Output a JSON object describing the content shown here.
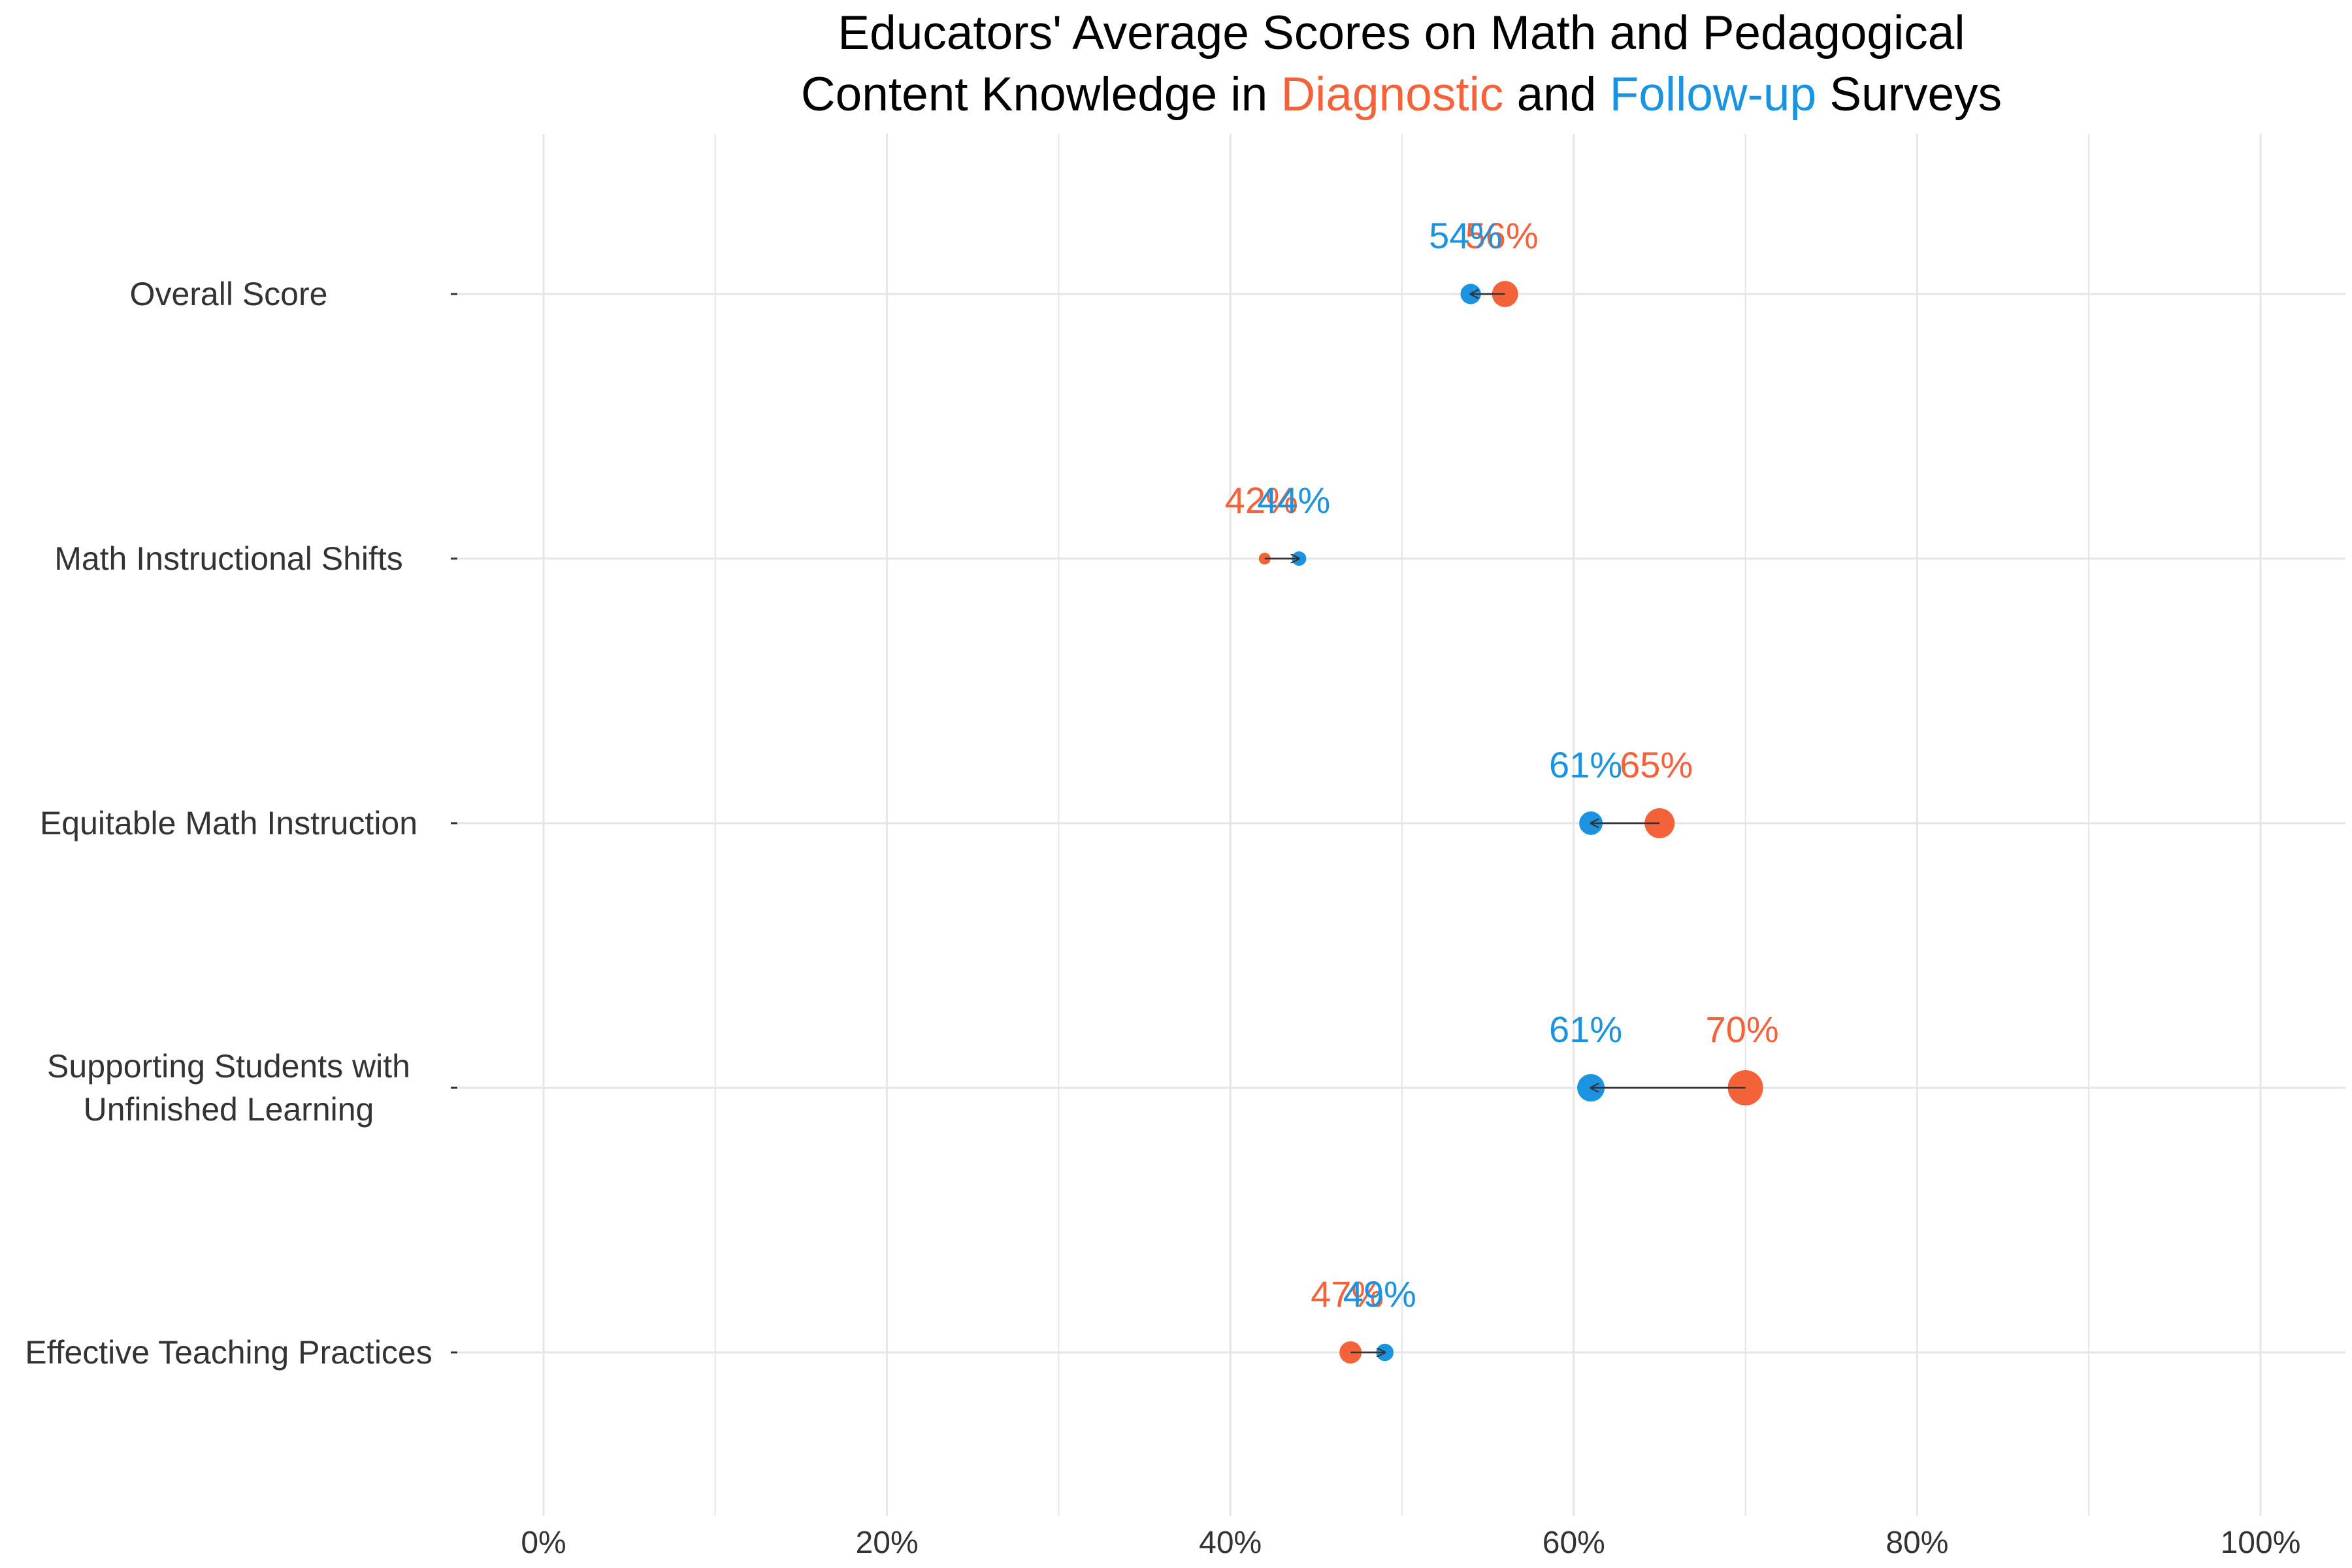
{
  "chart_data": {
    "type": "dumbbell",
    "title_parts": [
      {
        "text": "Educators' Average Scores on Math and Pedagogical",
        "role": "plain",
        "line": 0
      },
      {
        "text": "Content Knowledge in ",
        "role": "plain",
        "line": 1
      },
      {
        "text": "Diagnostic",
        "role": "diagnostic",
        "line": 1
      },
      {
        "text": " and ",
        "role": "plain",
        "line": 1
      },
      {
        "text": "Follow-up",
        "role": "followup",
        "line": 1
      },
      {
        "text": " Surveys",
        "role": "plain",
        "line": 1
      }
    ],
    "colors": {
      "diagnostic": "#f4623a",
      "followup": "#1a93e0",
      "arrow": "#333333",
      "grid": "#e6e6e6"
    },
    "xlim": [
      0,
      1
    ],
    "x_ticks": [
      {
        "value": 0,
        "label": "0%"
      },
      {
        "value": 0.2,
        "label": "20%"
      },
      {
        "value": 0.4,
        "label": "40%"
      },
      {
        "value": 0.6,
        "label": "60%"
      },
      {
        "value": 0.8,
        "label": "80%"
      },
      {
        "value": 1.0,
        "label": "100%"
      }
    ],
    "categories": [
      {
        "label_lines": [
          "Overall Score"
        ],
        "diagnostic": 0.56,
        "followup": 0.54,
        "diagnostic_label": "56%",
        "followup_label": "54%",
        "size": 3
      },
      {
        "label_lines": [
          "Math Instructional Shifts"
        ],
        "diagnostic": 0.42,
        "followup": 0.44,
        "diagnostic_label": "42%",
        "followup_label": "44%",
        "size": 1
      },
      {
        "label_lines": [
          "Equitable Math Instruction"
        ],
        "diagnostic": 0.65,
        "followup": 0.61,
        "diagnostic_label": "65%",
        "followup_label": "61%",
        "size": 4
      },
      {
        "label_lines": [
          "Supporting Students with",
          "Unfinished Learning"
        ],
        "diagnostic": 0.7,
        "followup": 0.61,
        "diagnostic_label": "70%",
        "followup_label": "61%",
        "size": 5
      },
      {
        "label_lines": [
          "Effective Teaching Practices"
        ],
        "diagnostic": 0.47,
        "followup": 0.49,
        "diagnostic_label": "47%",
        "followup_label": "49%",
        "size": 2
      }
    ]
  }
}
